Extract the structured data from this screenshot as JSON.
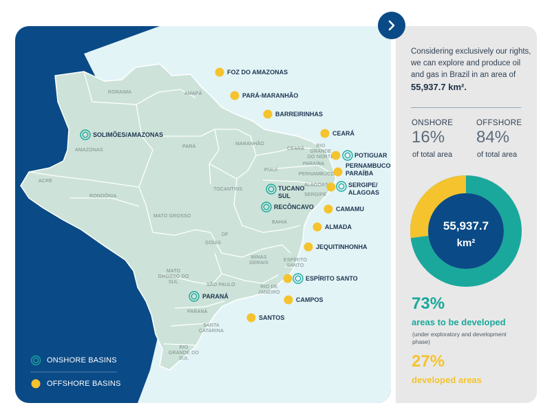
{
  "colors": {
    "ocean": "#0a4a86",
    "sea_light": "#e3f4f7",
    "land": "#cde3d9",
    "onshore": "#1aa89c",
    "offshore": "#f5c32d",
    "dark": "#0a4a86"
  },
  "intro": {
    "text": "Considering exclusively our rights, we can explore and produce oil and gas in Brazil in an area of",
    "area": "55,937.7 km²."
  },
  "split": {
    "onshore": {
      "title": "ONSHORE",
      "pct": "16%",
      "sub": "of total area"
    },
    "offshore": {
      "title": "OFFSHORE",
      "pct": "84%",
      "sub": "of total area"
    }
  },
  "donut": {
    "center_value": "55,937.7",
    "center_unit": "km²",
    "developing_fraction": 0.73,
    "developed_fraction": 0.27
  },
  "stats": {
    "to_develop": {
      "pct": "73%",
      "label": "areas to be developed",
      "note": "(under exploratory and development phase)"
    },
    "developed": {
      "pct": "27%",
      "label": "developed areas"
    }
  },
  "legend": {
    "onshore": "ONSHORE BASINS",
    "offshore": "OFFSHORE BASINS"
  },
  "states": [
    "RORAIMA",
    "AMAPÁ",
    "AMAZONAS",
    "PARÁ",
    "MARANHÃO",
    "CEARÁ",
    "RIO GRANDE DO NORTE",
    "PARAÍBA",
    "PERNAMBUCO",
    "PIAUÍ",
    "ALAGOAS",
    "SERGIPE",
    "ACRE",
    "RONDÔNIA",
    "TOCANTINS",
    "BAHIA",
    "MATO GROSSO",
    "DF",
    "GOÍAS",
    "MINAS GERAIS",
    "ESPÍRITO SANTO",
    "MATO GROSSO DO SUL",
    "SÃO PAULO",
    "RIO DE JANEIRO",
    "PARANÁ",
    "SANTA CATARINA",
    "RIO GRANDE DO SUL"
  ],
  "basins": {
    "onshore": [
      "SOLIMÕES/AMAZONAS",
      "TUCANO SUL",
      "RECÔNCAVO",
      "POTIGUAR",
      "SERGIPE/ ALAGOAS",
      "ESPÍRITO SANTO",
      "PARANÁ"
    ],
    "offshore": [
      "FOZ DO AMAZONAS",
      "PARÁ-MARANHÃO",
      "BARREIRINHAS",
      "CEARÁ",
      "PERNAMBUCO- PARAÍBA",
      "CAMAMU",
      "ALMADA",
      "JEQUITINHONHA",
      "CAMPOS",
      "SANTOS"
    ]
  }
}
